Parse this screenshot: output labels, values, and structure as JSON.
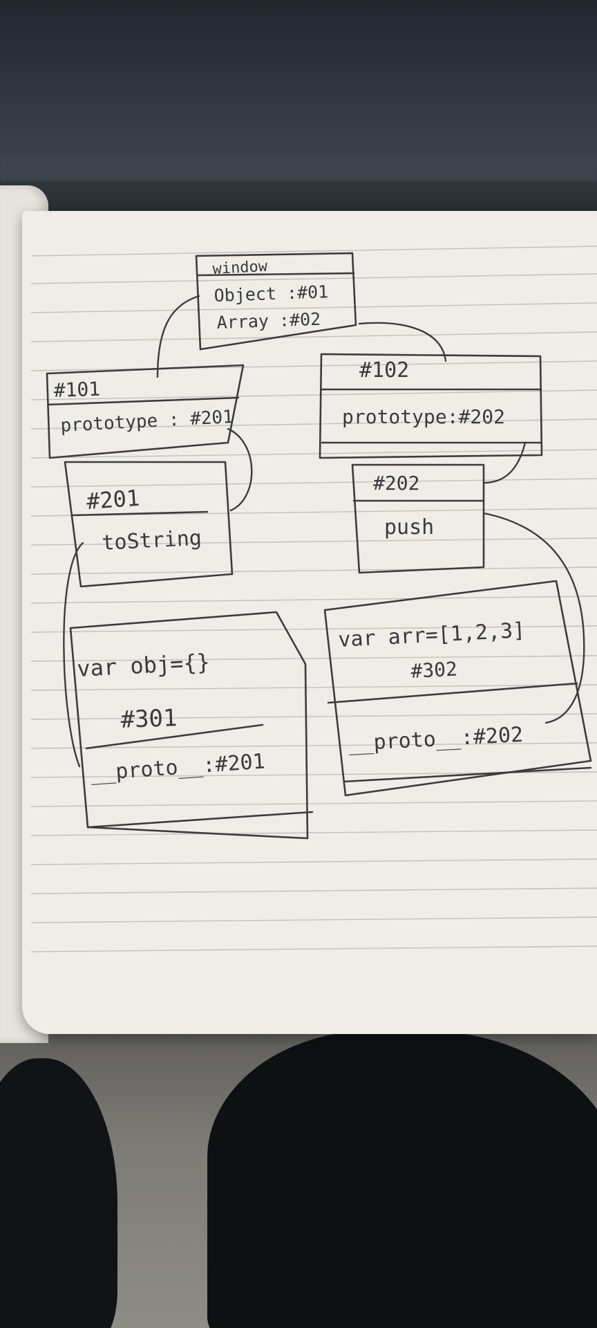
{
  "window_box": {
    "title": "window",
    "object_entry": "Object :#01",
    "array_entry": "Array :#02"
  },
  "box_101": {
    "id": "#101",
    "entry": "prototype : #201"
  },
  "box_102": {
    "id": "#102",
    "entry": "prototype:#202"
  },
  "box_201": {
    "id": "#201",
    "entry": "toString"
  },
  "box_202": {
    "id": "#202",
    "entry": "push"
  },
  "box_301": {
    "declaration": "var obj={}",
    "id": "#301",
    "entry": "__proto__:#201"
  },
  "box_302": {
    "declaration": "var arr=[1,2,3]",
    "id": "#302",
    "entry": "__proto__:#202"
  }
}
